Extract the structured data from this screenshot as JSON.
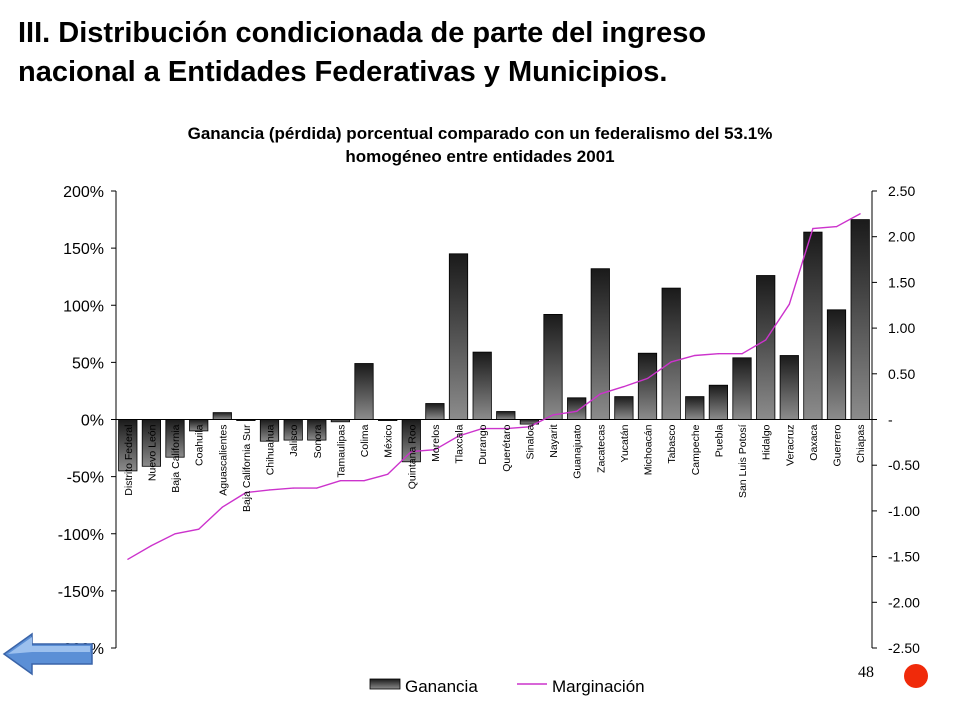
{
  "slide": {
    "title_line1": "III. Distribución condicionada de parte del ingreso",
    "title_line2": "nacional a Entidades Federativas y Municipios.",
    "page_number": "48"
  },
  "nav": {
    "back_icon": "back-arrow-icon",
    "dot_color": "#f02a0a"
  },
  "colors": {
    "bar_top": "#1a1a1a",
    "bar_bottom": "#8c8c8c",
    "line": "#cc33cc"
  },
  "chart_data": {
    "type": "bar",
    "title_line1": "Ganancia (pérdida) porcentual comparado con un federalismo del 53.1%",
    "title_line2": "homogéneo entre entidades 2001",
    "categories": [
      "Distrito Federal",
      "Nuevo León",
      "Baja California",
      "Coahuila",
      "Aguascalientes",
      "Baja California Sur",
      "Chihuahua",
      "Jalisco",
      "Sonora",
      "Tamaulipas",
      "Colima",
      "México",
      "Quintana Roo",
      "Morelos",
      "Tlaxcala",
      "Durango",
      "Querétaro",
      "Sinaloa",
      "Nayarit",
      "Guanajuato",
      "Zacatecas",
      "Yucatán",
      "Michoacán",
      "Tabasco",
      "Campeche",
      "Puebla",
      "San Luis Potosí",
      "Hidalgo",
      "Veracruz",
      "Oaxaca",
      "Guerrero",
      "Chiapas"
    ],
    "series": [
      {
        "name": "Ganancia",
        "axis": "left",
        "values": [
          -45,
          -41,
          -33,
          -10,
          6,
          -1,
          -19,
          -18,
          -18,
          -2,
          49,
          -1,
          -37,
          14,
          145,
          59,
          7,
          -4,
          92,
          19,
          132,
          20,
          58,
          115,
          20,
          30,
          54,
          126,
          56,
          164,
          96,
          175
        ]
      },
      {
        "name": "Marginación",
        "axis": "right",
        "type": "line",
        "values": [
          -1.53,
          -1.38,
          -1.25,
          -1.2,
          -0.96,
          -0.8,
          -0.77,
          -0.75,
          -0.75,
          -0.67,
          -0.67,
          -0.6,
          -0.35,
          -0.33,
          -0.18,
          -0.1,
          -0.1,
          -0.08,
          0.05,
          0.09,
          0.28,
          0.36,
          0.45,
          0.63,
          0.7,
          0.72,
          0.72,
          0.87,
          1.26,
          2.09,
          2.11,
          2.25
        ]
      }
    ],
    "y_left": {
      "min": -200,
      "max": 200,
      "ticks": [
        "200%",
        "150%",
        "100%",
        "50%",
        "0%",
        "-50%",
        "-100%",
        "-150%",
        "-200%"
      ]
    },
    "y_right": {
      "min": -2.5,
      "max": 2.5,
      "ticks": [
        "2.50",
        "2.00",
        "1.50",
        "1.00",
        "0.50",
        "-",
        "-0.50",
        "-1.00",
        "-1.50",
        "-2.00",
        "-2.50"
      ]
    },
    "legend": {
      "position": "bottom",
      "entries": [
        "Ganancia",
        "Marginación"
      ]
    },
    "grid": false
  }
}
